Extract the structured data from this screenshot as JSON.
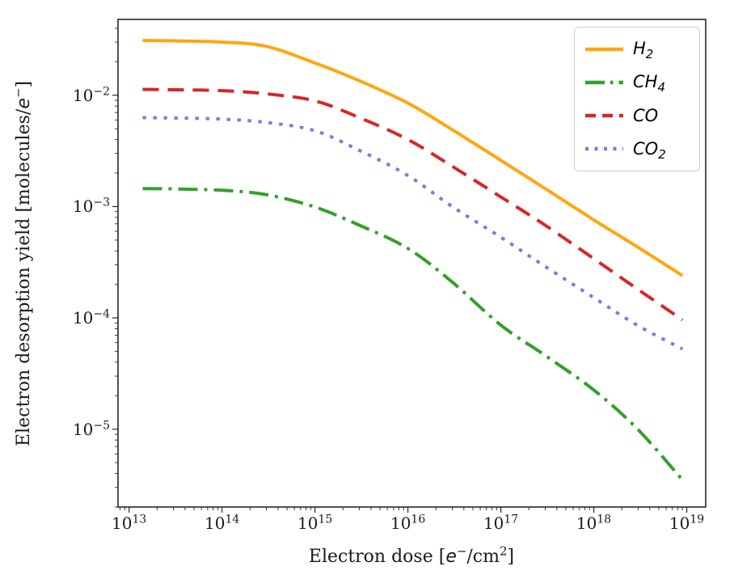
{
  "figure": {
    "background": "#ffffff",
    "spine_color": "#262626",
    "tick_color": "#262626",
    "text_color": "#1a1a1a"
  },
  "axes": {
    "xlabel_segments": [
      {
        "t": "Electron dose [",
        "s": "n"
      },
      {
        "t": "e",
        "s": "i"
      },
      {
        "t": "−",
        "s": "sup"
      },
      {
        "t": "/cm",
        "s": "n"
      },
      {
        "t": "2",
        "s": "sup"
      },
      {
        "t": "]",
        "s": "n"
      }
    ],
    "ylabel_segments": [
      {
        "t": "Electron desorption yield [molecules/",
        "s": "n"
      },
      {
        "t": "e",
        "s": "i"
      },
      {
        "t": "−",
        "s": "sup"
      },
      {
        "t": "]",
        "s": "n"
      }
    ],
    "x_ticks": [
      {
        "base": "10",
        "exp": "13",
        "val": 13
      },
      {
        "base": "10",
        "exp": "14",
        "val": 14
      },
      {
        "base": "10",
        "exp": "15",
        "val": 15
      },
      {
        "base": "10",
        "exp": "16",
        "val": 16
      },
      {
        "base": "10",
        "exp": "17",
        "val": 17
      },
      {
        "base": "10",
        "exp": "18",
        "val": 18
      },
      {
        "base": "10",
        "exp": "19",
        "val": 19
      }
    ],
    "y_ticks": [
      {
        "base": "10",
        "exp": "−2",
        "val": -2
      },
      {
        "base": "10",
        "exp": "−3",
        "val": -3
      },
      {
        "base": "10",
        "exp": "−4",
        "val": -4
      },
      {
        "base": "10",
        "exp": "−5",
        "val": -5
      }
    ]
  },
  "legend": {
    "items": [
      {
        "id": "h2",
        "main": "H",
        "sub": "2",
        "color": "#ffa60f",
        "style": "solid"
      },
      {
        "id": "ch4",
        "main": "CH",
        "sub": "4",
        "color": "#33a02c",
        "style": "dashdot"
      },
      {
        "id": "co",
        "main": "CO",
        "sub": "",
        "color": "#d62728",
        "style": "dashed"
      },
      {
        "id": "co2",
        "main": "CO",
        "sub": "2",
        "color": "#9370db",
        "style": "dotted"
      }
    ]
  },
  "chart_data": {
    "type": "line",
    "title": "",
    "xlabel": "Electron dose [e−/cm2]",
    "ylabel": "Electron desorption yield [molecules/e−]",
    "x_scale": "log",
    "y_scale": "log",
    "xlim": [
      7600000000000.0,
      1.6e+19
    ],
    "ylim": [
      2e-06,
      0.048
    ],
    "grid": false,
    "legend_position": "upper right",
    "x": [
      14000000000000.0,
      30000000000000.0,
      100000000000000.0,
      300000000000000.0,
      1000000000000000.0,
      3000000000000000.0,
      1e+16,
      3e+16,
      1e+17,
      3e+17,
      1e+18,
      3e+18,
      9e+18
    ],
    "series": [
      {
        "name": "H2",
        "color": "#ffa60f",
        "style": "solid",
        "y": [
          0.031,
          0.0308,
          0.03,
          0.0275,
          0.0195,
          0.0135,
          0.0085,
          0.0049,
          0.0026,
          0.00145,
          0.00076,
          0.00043,
          0.00024
        ]
      },
      {
        "name": "CH4",
        "color": "#33a02c",
        "style": "dashdot",
        "y": [
          0.00145,
          0.00144,
          0.0014,
          0.00128,
          0.00099,
          0.00068,
          0.00042,
          0.00021,
          8.6e-05,
          4.6e-05,
          2.25e-05,
          9.9e-06,
          3.5e-06
        ]
      },
      {
        "name": "CO",
        "color": "#d62728",
        "style": "dashed",
        "y": [
          0.0113,
          0.0112,
          0.011,
          0.0103,
          0.0089,
          0.0063,
          0.004,
          0.0023,
          0.00122,
          0.00068,
          0.00034,
          0.00018,
          9.6e-05
        ]
      },
      {
        "name": "CO2",
        "color": "#9370db",
        "style": "dotted",
        "y": [
          0.0063,
          0.00625,
          0.0061,
          0.0057,
          0.0048,
          0.0032,
          0.0019,
          0.001,
          0.00053,
          0.00029,
          0.000152,
          8.5e-05,
          5.26e-05
        ]
      }
    ]
  }
}
